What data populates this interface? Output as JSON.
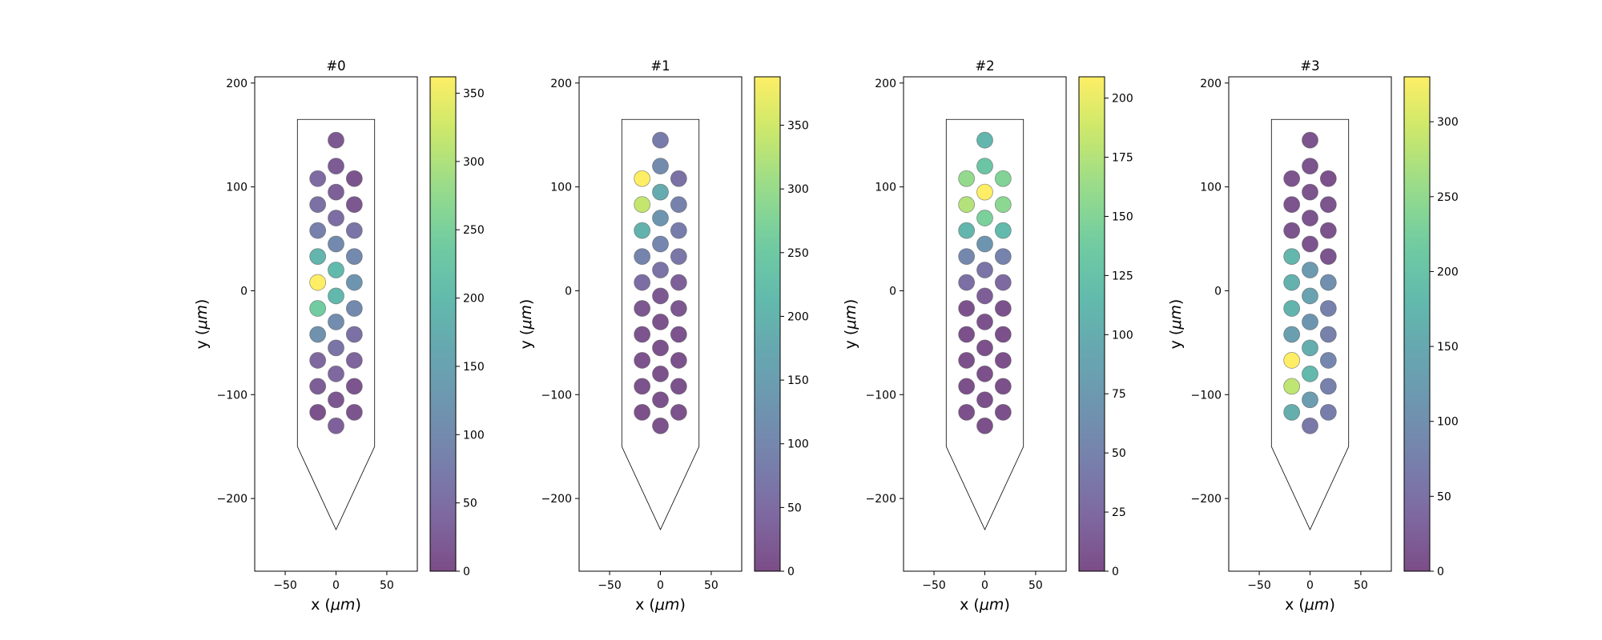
{
  "chart_data": [
    {
      "type": "scatter",
      "title": "#0",
      "xlabel": "x ($\\mu m$)",
      "ylabel": "y ($\\mu m$)",
      "xlim": [
        -80,
        80
      ],
      "ylim": [
        -270,
        206
      ],
      "xticks": [
        -50,
        0,
        50
      ],
      "yticks": [
        -200,
        -100,
        0,
        100,
        200
      ],
      "colormap": "viridis",
      "point_alpha": 0.7,
      "colorbar": {
        "min": 0,
        "max": 362,
        "ticks": [
          0,
          50,
          100,
          150,
          200,
          250,
          300,
          350
        ]
      },
      "probe_outline": [
        [
          -38,
          165
        ],
        [
          38,
          165
        ],
        [
          38,
          -150
        ],
        [
          0,
          -230
        ],
        [
          -38,
          -150
        ]
      ],
      "points": [
        {
          "x": 0,
          "y": 145,
          "value": 18
        },
        {
          "x": 0,
          "y": 120,
          "value": 22
        },
        {
          "x": -18,
          "y": 108,
          "value": 45
        },
        {
          "x": 18,
          "y": 108,
          "value": 10
        },
        {
          "x": 0,
          "y": 95,
          "value": 28
        },
        {
          "x": -18,
          "y": 83,
          "value": 55
        },
        {
          "x": 18,
          "y": 83,
          "value": 15
        },
        {
          "x": 0,
          "y": 70,
          "value": 48
        },
        {
          "x": -18,
          "y": 58,
          "value": 80
        },
        {
          "x": 18,
          "y": 58,
          "value": 62
        },
        {
          "x": 0,
          "y": 45,
          "value": 100
        },
        {
          "x": -18,
          "y": 33,
          "value": 190
        },
        {
          "x": 18,
          "y": 33,
          "value": 100
        },
        {
          "x": 0,
          "y": 20,
          "value": 200
        },
        {
          "x": -18,
          "y": 8,
          "value": 362
        },
        {
          "x": 18,
          "y": 8,
          "value": 120
        },
        {
          "x": 0,
          "y": -5,
          "value": 195
        },
        {
          "x": -18,
          "y": -17,
          "value": 240
        },
        {
          "x": 18,
          "y": -17,
          "value": 100
        },
        {
          "x": 0,
          "y": -30,
          "value": 105
        },
        {
          "x": -18,
          "y": -42,
          "value": 115
        },
        {
          "x": 18,
          "y": -42,
          "value": 55
        },
        {
          "x": 0,
          "y": -55,
          "value": 60
        },
        {
          "x": -18,
          "y": -67,
          "value": 40
        },
        {
          "x": 18,
          "y": -67,
          "value": 35
        },
        {
          "x": 0,
          "y": -80,
          "value": 40
        },
        {
          "x": -18,
          "y": -92,
          "value": 25
        },
        {
          "x": 18,
          "y": -92,
          "value": 12
        },
        {
          "x": 0,
          "y": -105,
          "value": 15
        },
        {
          "x": -18,
          "y": -117,
          "value": 8
        },
        {
          "x": 18,
          "y": -117,
          "value": 12
        },
        {
          "x": 0,
          "y": -130,
          "value": 30
        }
      ]
    },
    {
      "type": "scatter",
      "title": "#1",
      "xlabel": "x ($\\mu m$)",
      "ylabel": "y ($\\mu m$)",
      "xlim": [
        -80,
        80
      ],
      "ylim": [
        -270,
        206
      ],
      "xticks": [
        -50,
        0,
        50
      ],
      "yticks": [
        -200,
        -100,
        0,
        100,
        200
      ],
      "colormap": "viridis",
      "point_alpha": 0.7,
      "colorbar": {
        "min": 0,
        "max": 388,
        "ticks": [
          0,
          50,
          100,
          150,
          200,
          250,
          300,
          350
        ]
      },
      "probe_outline": [
        [
          -38,
          165
        ],
        [
          38,
          165
        ],
        [
          38,
          -150
        ],
        [
          0,
          -230
        ],
        [
          -38,
          -150
        ]
      ],
      "points": [
        {
          "x": 0,
          "y": 145,
          "value": 80
        },
        {
          "x": 0,
          "y": 120,
          "value": 110
        },
        {
          "x": -18,
          "y": 108,
          "value": 388
        },
        {
          "x": 18,
          "y": 108,
          "value": 60
        },
        {
          "x": 0,
          "y": 95,
          "value": 180
        },
        {
          "x": -18,
          "y": 83,
          "value": 340
        },
        {
          "x": 18,
          "y": 83,
          "value": 90
        },
        {
          "x": 0,
          "y": 70,
          "value": 130
        },
        {
          "x": -18,
          "y": 58,
          "value": 195
        },
        {
          "x": 18,
          "y": 58,
          "value": 80
        },
        {
          "x": 0,
          "y": 45,
          "value": 100
        },
        {
          "x": -18,
          "y": 33,
          "value": 95
        },
        {
          "x": 18,
          "y": 33,
          "value": 70
        },
        {
          "x": 0,
          "y": 20,
          "value": 65
        },
        {
          "x": -18,
          "y": 8,
          "value": 55
        },
        {
          "x": 18,
          "y": 8,
          "value": 30
        },
        {
          "x": 0,
          "y": -5,
          "value": 20
        },
        {
          "x": -18,
          "y": -17,
          "value": 15
        },
        {
          "x": 18,
          "y": -17,
          "value": 15
        },
        {
          "x": 0,
          "y": -30,
          "value": 10
        },
        {
          "x": -18,
          "y": -42,
          "value": 12
        },
        {
          "x": 18,
          "y": -42,
          "value": 10
        },
        {
          "x": 0,
          "y": -55,
          "value": 8
        },
        {
          "x": -18,
          "y": -67,
          "value": 10
        },
        {
          "x": 18,
          "y": -67,
          "value": 8
        },
        {
          "x": 0,
          "y": -80,
          "value": 8
        },
        {
          "x": -18,
          "y": -92,
          "value": 10
        },
        {
          "x": 18,
          "y": -92,
          "value": 8
        },
        {
          "x": 0,
          "y": -105,
          "value": 8
        },
        {
          "x": -18,
          "y": -117,
          "value": 6
        },
        {
          "x": 18,
          "y": -117,
          "value": 8
        },
        {
          "x": 0,
          "y": -130,
          "value": 10
        }
      ]
    },
    {
      "type": "scatter",
      "title": "#2",
      "xlabel": "x ($\\mu m$)",
      "ylabel": "y ($\\mu m$)",
      "xlim": [
        -80,
        80
      ],
      "ylim": [
        -270,
        206
      ],
      "xticks": [
        -50,
        0,
        50
      ],
      "yticks": [
        -200,
        -100,
        0,
        100,
        200
      ],
      "colormap": "viridis",
      "point_alpha": 0.7,
      "colorbar": {
        "min": 0,
        "max": 209,
        "ticks": [
          0,
          25,
          50,
          75,
          100,
          125,
          150,
          175,
          200
        ]
      },
      "probe_outline": [
        [
          -38,
          165
        ],
        [
          38,
          165
        ],
        [
          38,
          -150
        ],
        [
          0,
          -230
        ],
        [
          -38,
          -150
        ]
      ],
      "points": [
        {
          "x": 0,
          "y": 145,
          "value": 110
        },
        {
          "x": 0,
          "y": 120,
          "value": 130
        },
        {
          "x": -18,
          "y": 108,
          "value": 160
        },
        {
          "x": 18,
          "y": 108,
          "value": 150
        },
        {
          "x": 0,
          "y": 95,
          "value": 209
        },
        {
          "x": -18,
          "y": 83,
          "value": 175
        },
        {
          "x": 18,
          "y": 83,
          "value": 155
        },
        {
          "x": 0,
          "y": 70,
          "value": 145
        },
        {
          "x": -18,
          "y": 58,
          "value": 110
        },
        {
          "x": 18,
          "y": 58,
          "value": 115
        },
        {
          "x": 0,
          "y": 45,
          "value": 70
        },
        {
          "x": -18,
          "y": 33,
          "value": 55
        },
        {
          "x": 18,
          "y": 33,
          "value": 50
        },
        {
          "x": 0,
          "y": 20,
          "value": 35
        },
        {
          "x": -18,
          "y": 8,
          "value": 30
        },
        {
          "x": 18,
          "y": 8,
          "value": 25
        },
        {
          "x": 0,
          "y": -5,
          "value": 15
        },
        {
          "x": -18,
          "y": -17,
          "value": 5
        },
        {
          "x": 18,
          "y": -17,
          "value": 5
        },
        {
          "x": 0,
          "y": -30,
          "value": 5
        },
        {
          "x": -18,
          "y": -42,
          "value": 3
        },
        {
          "x": 18,
          "y": -42,
          "value": 3
        },
        {
          "x": 0,
          "y": -55,
          "value": 3
        },
        {
          "x": -18,
          "y": -67,
          "value": 3
        },
        {
          "x": 18,
          "y": -67,
          "value": 3
        },
        {
          "x": 0,
          "y": -80,
          "value": 3
        },
        {
          "x": -18,
          "y": -92,
          "value": 3
        },
        {
          "x": 18,
          "y": -92,
          "value": 3
        },
        {
          "x": 0,
          "y": -105,
          "value": 3
        },
        {
          "x": -18,
          "y": -117,
          "value": 3
        },
        {
          "x": 18,
          "y": -117,
          "value": 3
        },
        {
          "x": 0,
          "y": -130,
          "value": 3
        }
      ]
    },
    {
      "type": "scatter",
      "title": "#3",
      "xlabel": "x ($\\mu m$)",
      "ylabel": "y ($\\mu m$)",
      "xlim": [
        -80,
        80
      ],
      "ylim": [
        -270,
        206
      ],
      "xticks": [
        -50,
        0,
        50
      ],
      "yticks": [
        -200,
        -100,
        0,
        100,
        200
      ],
      "colormap": "viridis",
      "point_alpha": 0.7,
      "colorbar": {
        "min": 0,
        "max": 330,
        "ticks": [
          0,
          50,
          100,
          150,
          200,
          250,
          300
        ]
      },
      "probe_outline": [
        [
          -38,
          165
        ],
        [
          38,
          165
        ],
        [
          38,
          -150
        ],
        [
          0,
          -230
        ],
        [
          -38,
          -150
        ]
      ],
      "points": [
        {
          "x": 0,
          "y": 145,
          "value": 10
        },
        {
          "x": 0,
          "y": 120,
          "value": 10
        },
        {
          "x": -18,
          "y": 108,
          "value": 10
        },
        {
          "x": 18,
          "y": 108,
          "value": 5
        },
        {
          "x": 0,
          "y": 95,
          "value": 10
        },
        {
          "x": -18,
          "y": 83,
          "value": 10
        },
        {
          "x": 18,
          "y": 83,
          "value": 10
        },
        {
          "x": 0,
          "y": 70,
          "value": 10
        },
        {
          "x": -18,
          "y": 58,
          "value": 10
        },
        {
          "x": 18,
          "y": 58,
          "value": 8
        },
        {
          "x": 0,
          "y": 45,
          "value": 10
        },
        {
          "x": -18,
          "y": 33,
          "value": 175
        },
        {
          "x": 18,
          "y": 33,
          "value": 10
        },
        {
          "x": 0,
          "y": 20,
          "value": 120
        },
        {
          "x": -18,
          "y": 8,
          "value": 165
        },
        {
          "x": 18,
          "y": 8,
          "value": 100
        },
        {
          "x": 0,
          "y": -5,
          "value": 135
        },
        {
          "x": -18,
          "y": -17,
          "value": 170
        },
        {
          "x": 18,
          "y": -17,
          "value": 75
        },
        {
          "x": 0,
          "y": -30,
          "value": 110
        },
        {
          "x": -18,
          "y": -42,
          "value": 130
        },
        {
          "x": 18,
          "y": -42,
          "value": 75
        },
        {
          "x": 0,
          "y": -55,
          "value": 160
        },
        {
          "x": -18,
          "y": -67,
          "value": 330
        },
        {
          "x": 18,
          "y": -67,
          "value": 85
        },
        {
          "x": 0,
          "y": -80,
          "value": 180
        },
        {
          "x": -18,
          "y": -92,
          "value": 285
        },
        {
          "x": 18,
          "y": -92,
          "value": 75
        },
        {
          "x": 0,
          "y": -105,
          "value": 125
        },
        {
          "x": -18,
          "y": -117,
          "value": 160
        },
        {
          "x": 18,
          "y": -117,
          "value": 70
        },
        {
          "x": 0,
          "y": -130,
          "value": 60
        }
      ]
    }
  ]
}
